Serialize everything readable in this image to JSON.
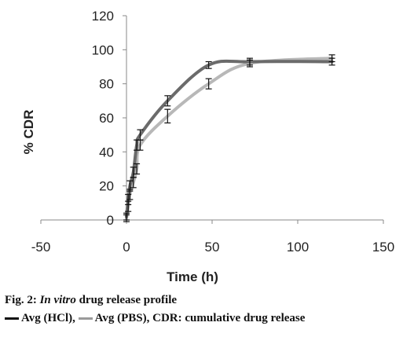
{
  "chart_data": {
    "type": "line",
    "title": "",
    "xlabel": "Time (h)",
    "ylabel": "% CDR",
    "xlim": [
      -50,
      150
    ],
    "ylim": [
      0,
      120
    ],
    "xticks": [
      -50,
      0,
      50,
      100,
      150
    ],
    "yticks": [
      0,
      20,
      40,
      60,
      80,
      100,
      120
    ],
    "grid": false,
    "series": [
      {
        "name": "Avg (HCl)",
        "color": "#6b6b6b",
        "x": [
          0,
          1,
          2,
          4,
          6,
          8,
          24,
          48,
          72,
          120
        ],
        "y": [
          2,
          12,
          20,
          28,
          44,
          50,
          70,
          91,
          93,
          93
        ],
        "err": [
          2,
          3,
          3,
          3,
          3,
          3,
          3,
          2,
          2,
          2
        ]
      },
      {
        "name": "Avg (PBS)",
        "color": "#b8b8b8",
        "x": [
          0,
          1,
          2,
          4,
          6,
          8,
          24,
          48,
          72,
          120
        ],
        "y": [
          1,
          8,
          15,
          22,
          30,
          44,
          61,
          80,
          92,
          95
        ],
        "err": [
          2,
          3,
          3,
          3,
          3,
          3,
          4,
          3,
          2,
          2
        ]
      }
    ]
  },
  "caption": {
    "fig_label": "Fig. 2: ",
    "fig_italic": "In vitro",
    "fig_rest": " drug release profile",
    "legend_hcl": "Avg (HCl),",
    "legend_pbs": "Avg (PBS),",
    "note": "CDR: cumulative drug release"
  }
}
